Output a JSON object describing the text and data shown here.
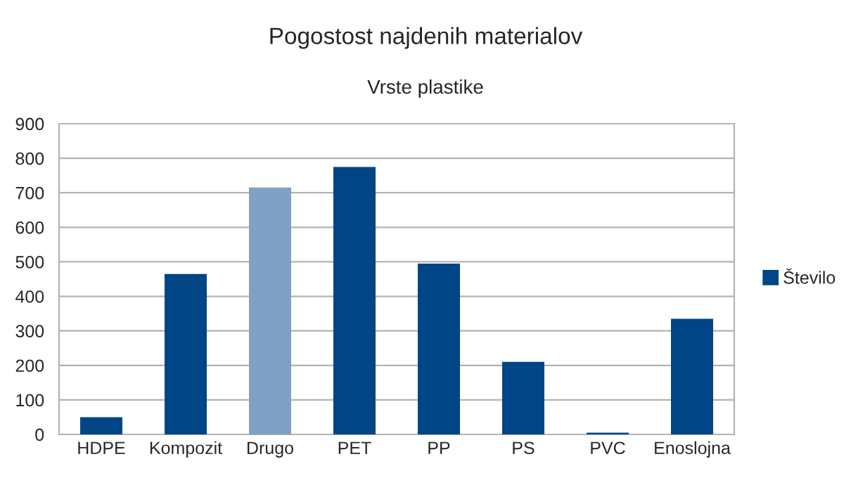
{
  "chart_data": {
    "type": "bar",
    "title": "Pogostost najdenih materialov",
    "subtitle": "Vrste plastike",
    "categories": [
      "HDPE",
      "Kompozit",
      "Drugo",
      "PET",
      "PP",
      "PS",
      "PVC",
      "Enoslojna"
    ],
    "series": [
      {
        "name": "Število",
        "color": "#004586",
        "colors": [
          "#004586",
          "#004586",
          "#7fa1c3",
          "#004586",
          "#004586",
          "#004586",
          "#004586",
          "#004586"
        ],
        "values": [
          50,
          465,
          715,
          775,
          495,
          210,
          5,
          335
        ]
      }
    ],
    "ylim": [
      0,
      900
    ],
    "yticks": [
      0,
      100,
      200,
      300,
      400,
      500,
      600,
      700,
      800,
      900
    ],
    "grid": "y",
    "legend": "right"
  }
}
